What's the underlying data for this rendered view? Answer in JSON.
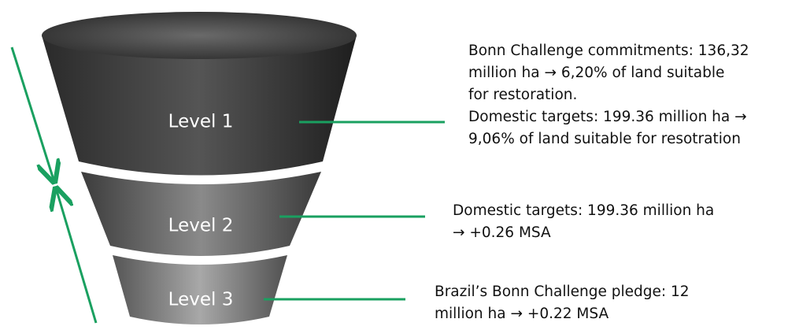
{
  "levels": [
    {
      "label": "Level 1",
      "description": [
        "Bonn Challenge commitments: 136,32",
        "million ha → 6,20% of land suitable",
        "for restoration.",
        "Domestic targets: 199.36 million ha →",
        "9,06% of land suitable for resotration"
      ]
    },
    {
      "label": "Level 2",
      "description": [
        "Domestic targets: 199.36 million ha",
        "→ +0.26 MSA"
      ]
    },
    {
      "label": "Level 3",
      "description": [
        "Brazil’s Bonn Challenge pledge: 12",
        "million ha → +0.22 MSA"
      ]
    }
  ]
}
